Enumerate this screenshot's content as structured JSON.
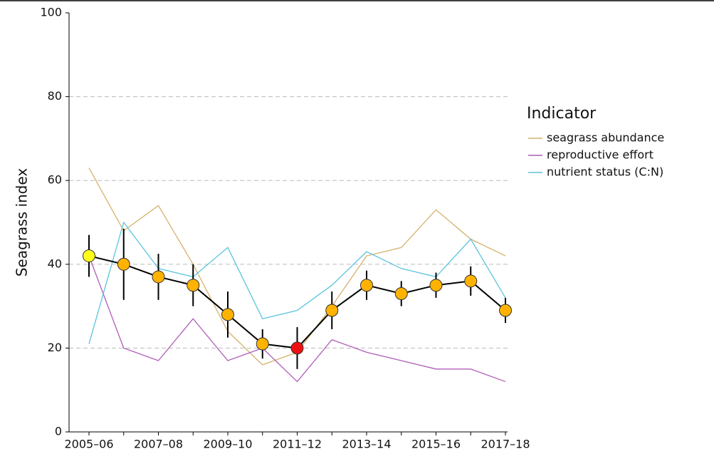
{
  "chart_data": {
    "type": "line",
    "y_label": "Seagrass index",
    "categories": [
      "2005–06",
      null,
      "2007–08",
      null,
      "2009–10",
      null,
      "2011–12",
      null,
      "2013–14",
      null,
      "2015–16",
      null,
      "2017–18"
    ],
    "series": [
      {
        "name": "seagrass abundance",
        "color": "#d4b26a",
        "values": [
          63,
          48,
          54,
          40,
          24,
          16,
          19,
          30,
          42,
          44,
          53,
          46,
          42
        ]
      },
      {
        "name": "reproductive effort",
        "color": "#b05cb8",
        "values": [
          42,
          20,
          17,
          27,
          17,
          20,
          12,
          22,
          19,
          17,
          15,
          15,
          12
        ]
      },
      {
        "name": "nutrient status (C:N)",
        "color": "#5bc4de",
        "values": [
          21,
          50,
          39,
          37,
          44,
          27,
          29,
          35,
          43,
          39,
          37,
          46,
          32
        ]
      }
    ],
    "index": {
      "color": "#000000",
      "values": [
        42,
        40,
        37,
        35,
        28,
        21,
        20,
        29,
        35,
        33,
        35,
        36,
        29
      ],
      "errors": [
        5,
        8.5,
        5.5,
        5,
        5.5,
        3.5,
        5,
        4.5,
        3.5,
        3,
        3,
        3.5,
        3
      ],
      "point_colors": [
        "#ffff1a",
        "#ffb300",
        "#ffb300",
        "#ffb300",
        "#ffb300",
        "#ffb300",
        "#ee1111",
        "#ffb300",
        "#ffb300",
        "#ffb300",
        "#ffb300",
        "#ffb300",
        "#ffb300"
      ]
    },
    "legend_title": "Indicator",
    "legend": "right",
    "ylim": [
      0,
      100
    ],
    "yticks": [
      0,
      20,
      40,
      60,
      80,
      100
    ],
    "grid": true
  }
}
